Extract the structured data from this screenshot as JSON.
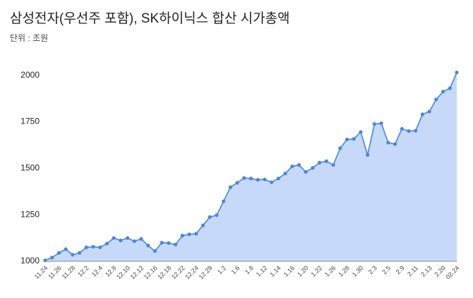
{
  "chart_data": {
    "type": "area",
    "title": "삼성전자(우선주 포함), SK하이닉스 합산 시가총액",
    "subtitle": "단위 : 조원",
    "categories": [
      "11.24",
      null,
      "11.26",
      null,
      "11.28",
      null,
      "12.2",
      null,
      "12.4",
      null,
      "12.8",
      null,
      "12.10",
      null,
      "12.12",
      null,
      "12.16",
      null,
      "12.18",
      null,
      "12.22",
      null,
      "12.24",
      null,
      "12.29",
      null,
      "1.2",
      null,
      "1.6",
      null,
      "1.8",
      null,
      "1.12",
      null,
      "1.14",
      null,
      "1.16",
      null,
      "1.20",
      null,
      "1.22",
      null,
      "1.26",
      null,
      "1.28",
      null,
      "1.30",
      null,
      "2.3",
      null,
      "2.5",
      null,
      "2.9",
      null,
      "2.11",
      null,
      "2.13",
      null,
      "2.20",
      null,
      "02.24"
    ],
    "values": [
      1005,
      1020,
      1045,
      1065,
      1035,
      1045,
      1075,
      1078,
      1075,
      1095,
      1125,
      1112,
      1125,
      1108,
      1120,
      1085,
      1055,
      1100,
      1098,
      1090,
      1138,
      1145,
      1148,
      1193,
      1238,
      1248,
      1322,
      1398,
      1422,
      1448,
      1445,
      1438,
      1440,
      1425,
      1445,
      1472,
      1510,
      1518,
      1480,
      1502,
      1530,
      1538,
      1518,
      1608,
      1655,
      1658,
      1695,
      1572,
      1738,
      1742,
      1638,
      1630,
      1712,
      1700,
      1702,
      1790,
      1805,
      1870,
      1912,
      1930,
      2015
    ],
    "color": "#4a86e0",
    "fill": "#c6d9f8",
    "ylim": [
      1000,
      2025
    ],
    "yticks": [
      1000,
      1250,
      1500,
      1750,
      2000
    ],
    "grid": false
  }
}
